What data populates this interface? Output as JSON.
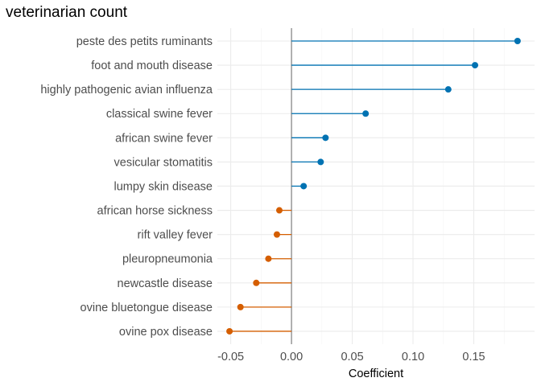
{
  "chart_data": {
    "type": "lollipop",
    "title": "veterinarian count",
    "xlabel": "Coefficient",
    "ylabel": "",
    "xlim": [
      -0.061,
      0.2
    ],
    "xticks": [
      -0.05,
      0.0,
      0.05,
      0.1,
      0.15
    ],
    "xtick_labels": [
      "-0.05",
      "0.00",
      "0.05",
      "0.10",
      "0.15"
    ],
    "grid": true,
    "colors": {
      "positive": "#0072b2",
      "negative": "#d55e00",
      "zero_line": "#7f7f7f"
    },
    "categories": [
      "peste des petits ruminants",
      "foot and mouth disease",
      "highly pathogenic avian influenza",
      "classical swine fever",
      "african swine fever",
      "vesicular stomatitis",
      "lumpy skin disease",
      "african horse sickness",
      "rift valley fever",
      "pleuropneumonia",
      "newcastle disease",
      "ovine bluetongue disease",
      "ovine pox disease"
    ],
    "values": [
      0.186,
      0.151,
      0.129,
      0.061,
      0.028,
      0.024,
      0.01,
      -0.01,
      -0.012,
      -0.019,
      -0.029,
      -0.042,
      -0.051
    ]
  }
}
